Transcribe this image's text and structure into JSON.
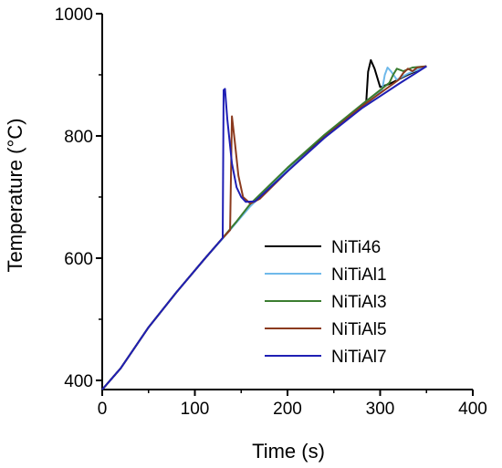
{
  "chart_data": {
    "type": "line",
    "title": "",
    "xlabel": "Time (s)",
    "ylabel": "Temperature (°C)",
    "xlim": [
      0,
      400
    ],
    "ylim": [
      385,
      1000
    ],
    "xticks": [
      0,
      100,
      200,
      300,
      400
    ],
    "yticks": [
      400,
      600,
      800,
      1000
    ],
    "grid": false,
    "legend_position": "right",
    "series": [
      {
        "name": "NiTi46",
        "color": "#000000",
        "x": [
          0,
          20,
          50,
          80,
          110,
          130,
          160,
          200,
          240,
          270,
          285,
          287,
          290,
          294,
          300,
          310,
          330,
          350
        ],
        "y": [
          385,
          420,
          487,
          544,
          598,
          633,
          686,
          745,
          799,
          838,
          857,
          905,
          924,
          910,
          880,
          885,
          900,
          914
        ]
      },
      {
        "name": "NiTiAl1",
        "color": "#6fb9ea",
        "x": [
          0,
          20,
          50,
          80,
          110,
          130,
          160,
          200,
          240,
          280,
          302,
          305,
          308,
          312,
          318,
          330,
          350
        ],
        "y": [
          385,
          420,
          487,
          544,
          598,
          632,
          685,
          744,
          797,
          846,
          874,
          900,
          912,
          905,
          892,
          902,
          914
        ]
      },
      {
        "name": "NiTiAl3",
        "color": "#3a7d30",
        "x": [
          0,
          20,
          50,
          80,
          110,
          130,
          145,
          160,
          200,
          240,
          280,
          310,
          314,
          318,
          325,
          335,
          350
        ],
        "y": [
          385,
          420,
          487,
          544,
          598,
          633,
          660,
          689,
          748,
          802,
          851,
          887,
          900,
          910,
          906,
          912,
          914
        ]
      },
      {
        "name": "NiTiAl5",
        "color": "#8b3a1e",
        "x": [
          0,
          20,
          50,
          80,
          110,
          130,
          138,
          140,
          143,
          147,
          152,
          160,
          170,
          200,
          240,
          280,
          320,
          325,
          330,
          335,
          340,
          350
        ],
        "y": [
          385,
          420,
          487,
          544,
          598,
          633,
          646,
          832,
          793,
          735,
          700,
          689,
          697,
          742,
          798,
          848,
          892,
          903,
          910,
          906,
          912,
          914
        ]
      },
      {
        "name": "NiTiAl7",
        "color": "#1f1fb4",
        "x": [
          0,
          20,
          50,
          80,
          110,
          130,
          131,
          132.5,
          135,
          140,
          145,
          150,
          155,
          165,
          200,
          240,
          280,
          320,
          350
        ],
        "y": [
          385,
          420,
          487,
          544,
          598,
          633,
          875,
          877,
          828,
          755,
          716,
          700,
          692,
          693,
          742,
          797,
          845,
          885,
          914
        ]
      }
    ]
  }
}
